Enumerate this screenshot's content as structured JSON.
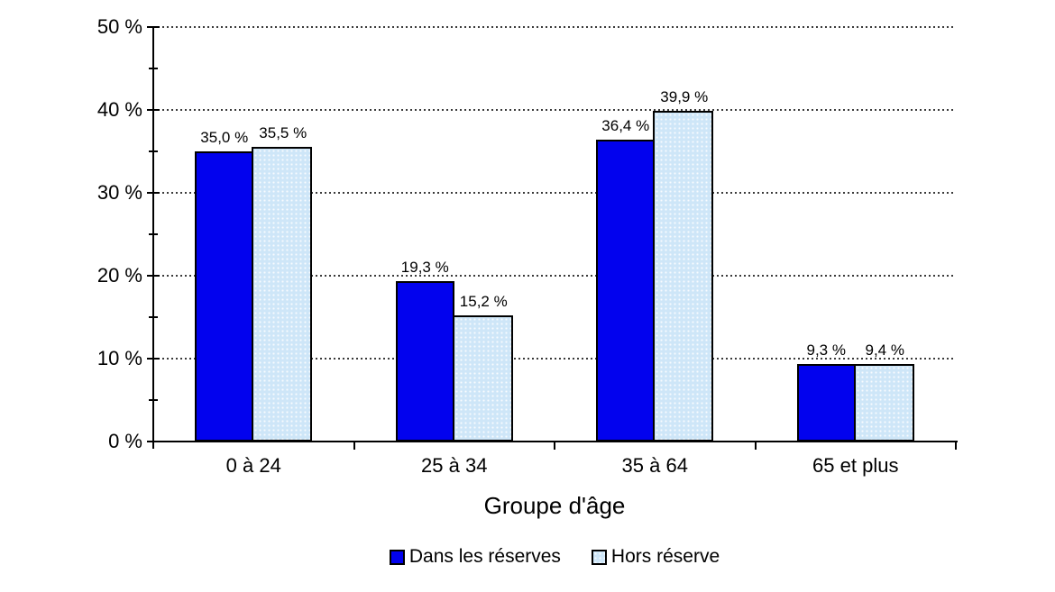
{
  "chart_data": {
    "type": "bar",
    "title": "",
    "categories": [
      "0 à 24",
      "25 à 34",
      "35 à 64",
      "65 et plus"
    ],
    "series": [
      {
        "name": "Dans les réserves",
        "color": "#0202EE",
        "pattern": false,
        "values": [
          35.0,
          19.3,
          36.4,
          9.3
        ],
        "data_labels": [
          "35,0 %",
          "19,3 %",
          "36,4 %",
          "9,3 %"
        ]
      },
      {
        "name": "Hors réserve",
        "color": "#CEE6F8",
        "pattern": true,
        "values": [
          35.5,
          15.2,
          39.9,
          9.4
        ],
        "data_labels": [
          "35,5 %",
          "15,2 %",
          "39,9 %",
          "9,4 %"
        ]
      }
    ],
    "xlabel": "Groupe d'âge",
    "ylabel": "",
    "ylim": [
      0,
      50
    ],
    "y_major_step": 10,
    "y_minor_step": 5,
    "y_tick_labels": [
      "0 %",
      "10 %",
      "20 %",
      "30 %",
      "40 %",
      "50 %"
    ],
    "grid": "horizontal-dotted-at-major-ticks",
    "legend_position": "bottom"
  },
  "colors": {
    "series_dans_les_reserves": "#0202EE",
    "series_hors_reserve": "#CEE6F8",
    "bar_border": "#000000",
    "axis": "#000000",
    "gridline": "#3A3A3A",
    "text": "#000000",
    "background": "#FFFFFF"
  }
}
